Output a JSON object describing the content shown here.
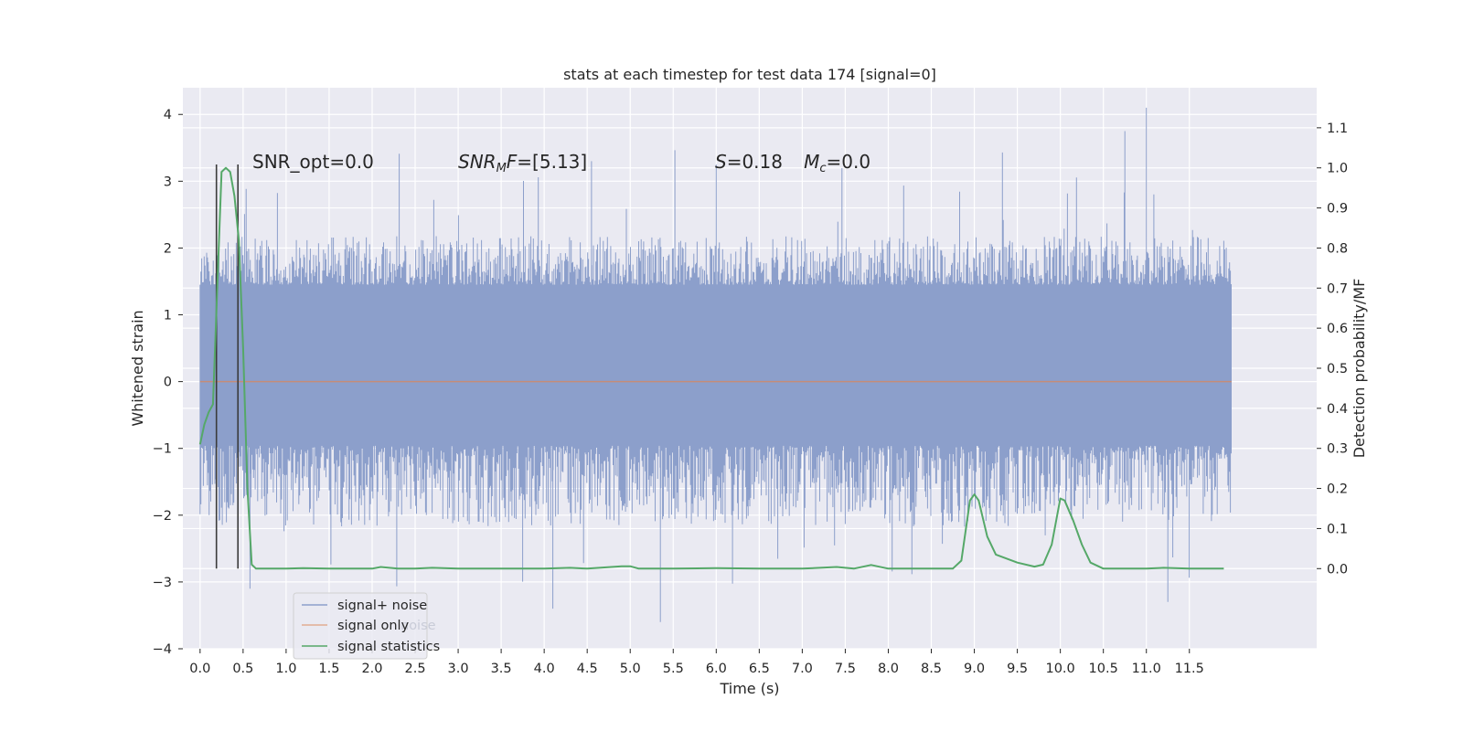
{
  "chart_data": {
    "type": "line",
    "title": "stats at each timestep for test data 174 [signal=0]",
    "xlabel": "Time (s)",
    "ylabel_left": "Whitened strain",
    "ylabel_right": "Detection probability/MF",
    "xlim": [
      -0.2,
      12.98
    ],
    "ylim_left": [
      -4,
      4.4
    ],
    "ylim_right": [
      -0.2,
      1.2
    ],
    "x_ticks": [
      "0.0",
      "0.5",
      "1.0",
      "1.5",
      "2.0",
      "2.5",
      "3.0",
      "3.5",
      "4.0",
      "4.5",
      "5.0",
      "5.5",
      "6.0",
      "6.5",
      "7.0",
      "7.5",
      "8.0",
      "8.5",
      "9.0",
      "9.5",
      "10.0",
      "10.5",
      "11.0",
      "11.5"
    ],
    "y_ticks_left": [
      "4",
      "3",
      "2",
      "1",
      "0",
      "−1",
      "−2",
      "−3",
      "−4"
    ],
    "y_ticks_right": [
      "1.1",
      "1.0",
      "0.9",
      "0.8",
      "0.7",
      "0.6",
      "0.5",
      "0.4",
      "0.3",
      "0.2",
      "0.1",
      "0.0"
    ],
    "grid": true,
    "legend_placement": "lower-left",
    "annotations": {
      "snr_opt": "SNR_opt=0.0",
      "snr_mf_main": "SNR",
      "snr_mf_sub": "M",
      "snr_mf_rest": "F=[5.13]",
      "s_main": "S",
      "s_rest": "=0.18   ",
      "mc_main": "M",
      "mc_sub": "c",
      "mc_rest": "=0.0"
    },
    "noise_band": {
      "x_range": [
        0.0,
        11.99
      ],
      "inner_min": -0.96,
      "inner_max": 1.45,
      "typical_max": 2.2,
      "typical_min": -2.2,
      "peak_max": 4.1,
      "peak_min": -3.6
    },
    "vertical_markers": {
      "x": [
        0.19,
        0.44
      ],
      "ymin": -2.8,
      "ymax": 3.25
    },
    "series": [
      {
        "name": "signal+ noise",
        "color": "#8c9fcb",
        "description_only": false
      },
      {
        "name": "signal only",
        "color": "#dd8452",
        "x": [
          0.0,
          11.99
        ],
        "y": [
          0.0,
          0.0
        ]
      },
      {
        "name": "signal statistics",
        "color": "#55a868",
        "axis": "right",
        "x": [
          0.0,
          0.05,
          0.1,
          0.15,
          0.2,
          0.25,
          0.3,
          0.35,
          0.4,
          0.45,
          0.5,
          0.55,
          0.6,
          0.65,
          0.7,
          0.8,
          1.0,
          1.2,
          1.5,
          2.0,
          2.1,
          2.3,
          2.5,
          2.7,
          3.0,
          4.0,
          4.3,
          4.5,
          4.9,
          5.0,
          5.1,
          5.5,
          6.0,
          6.5,
          7.0,
          7.4,
          7.6,
          7.8,
          8.0,
          8.5,
          8.75,
          8.85,
          8.95,
          9.0,
          9.05,
          9.15,
          9.25,
          9.5,
          9.7,
          9.8,
          9.9,
          10.0,
          10.05,
          10.15,
          10.25,
          10.35,
          10.5,
          11.0,
          11.2,
          11.5,
          11.9
        ],
        "y": [
          0.31,
          0.36,
          0.39,
          0.41,
          0.7,
          0.99,
          1.0,
          0.99,
          0.93,
          0.82,
          0.55,
          0.2,
          0.01,
          0.0,
          0.0,
          0.0,
          0.0,
          0.001,
          0.0,
          0.0,
          0.004,
          0.0,
          0.0,
          0.002,
          0.0,
          0.0,
          0.002,
          0.0,
          0.006,
          0.006,
          0.0,
          0.0,
          0.001,
          0.0,
          0.0,
          0.004,
          0.0,
          0.009,
          0.0,
          0.0,
          0.0,
          0.02,
          0.17,
          0.185,
          0.17,
          0.08,
          0.035,
          0.015,
          0.005,
          0.01,
          0.06,
          0.175,
          0.17,
          0.12,
          0.06,
          0.015,
          0.0,
          0.0,
          0.002,
          0.0,
          0.0
        ]
      }
    ],
    "legend": {
      "entries": [
        "signal+ noise",
        "signal only",
        "signal statistics"
      ],
      "ghost_text": "noise"
    },
    "colors": {
      "background": "#eaeaf2",
      "grid": "#ffffff",
      "noise": "#8c9fcb",
      "signal_only": "#dd8452",
      "statistics": "#55a868",
      "markers": "#3b3b3b"
    }
  }
}
